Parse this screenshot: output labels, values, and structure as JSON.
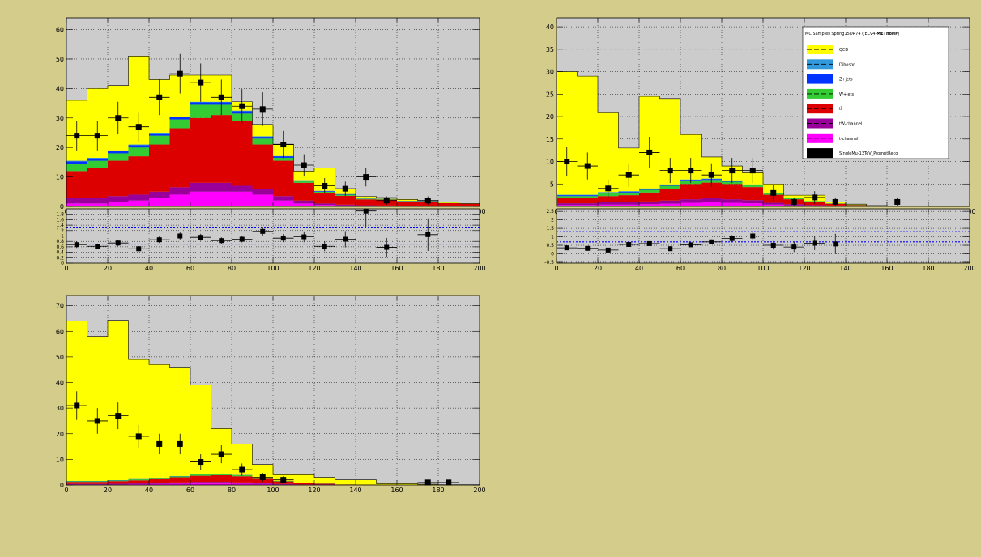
{
  "colors": {
    "canvas_bg": "#d4cc8a",
    "frame_bg": "#cccccc",
    "QCD": "#ffff00",
    "Diboson": "#3399dd",
    "Z+jets": "#0033ff",
    "W+jets": "#33cc33",
    "ttbar": "#dd0000",
    "tW-channel": "#990099",
    "t-channel": "#ff00ff",
    "data": "#000000",
    "ratio_band": "#0000ff"
  },
  "legend": {
    "header_prefix": "MC Samples Spring15DR74 (JECv4-",
    "header_bold": "METnoHF",
    "header_suffix": ")",
    "entries": [
      {
        "key": "QCD",
        "label": "QCD"
      },
      {
        "key": "Diboson",
        "label": "Diboson"
      },
      {
        "key": "Z+jets",
        "label": "Z+jets"
      },
      {
        "key": "W+jets",
        "label": "W+jets"
      },
      {
        "key": "ttbar",
        "label": "tt̄"
      },
      {
        "key": "tW-channel",
        "label": "tW-channel"
      },
      {
        "key": "t-channel",
        "label": "t-channel"
      },
      {
        "key": "data",
        "label": "SingleMu-13TeV_PromptReco"
      }
    ]
  },
  "chart_data": [
    {
      "type": "bar",
      "stacked": true,
      "bin_edges": [
        0,
        10,
        20,
        30,
        40,
        50,
        60,
        70,
        80,
        90,
        100,
        110,
        120,
        130,
        140,
        150,
        160,
        170,
        180,
        190,
        200
      ],
      "xlim": [
        0,
        200
      ],
      "ylim": [
        0,
        64
      ],
      "xticks": [
        0,
        20,
        40,
        60,
        80,
        100,
        120,
        140,
        160,
        180,
        200
      ],
      "yticks": [
        0,
        10,
        20,
        30,
        40,
        50,
        60
      ],
      "stack_order": [
        "t-channel",
        "tW-channel",
        "ttbar",
        "W+jets",
        "Z+jets",
        "Diboson",
        "QCD"
      ],
      "series": [
        {
          "name": "t-channel",
          "values": [
            1,
            1,
            1.5,
            2,
            3,
            4,
            5,
            5,
            5,
            4,
            2,
            1,
            0.5,
            0.3,
            0.2,
            0.1,
            0.1,
            0.1,
            0,
            0
          ]
        },
        {
          "name": "tW-channel",
          "values": [
            2,
            2,
            2,
            2,
            2,
            2.5,
            3,
            3,
            2,
            2,
            1.5,
            1,
            0.5,
            0.3,
            0.2,
            0.2,
            0.1,
            0.1,
            0.1,
            0.1
          ]
        },
        {
          "name": "ttbar",
          "values": [
            9,
            10,
            12,
            13,
            16,
            20,
            22,
            23,
            22,
            15,
            12,
            6,
            3.5,
            3,
            2,
            2,
            1.5,
            1.5,
            1,
            0.8
          ]
        },
        {
          "name": "W+jets",
          "values": [
            2.5,
            2.5,
            2.5,
            3,
            3,
            3,
            4.5,
            3.5,
            2.5,
            2,
            1,
            0.5,
            0.5,
            0.4,
            0.2,
            0.2,
            0.1,
            0.1,
            0.1,
            0
          ]
        },
        {
          "name": "Z+jets",
          "values": [
            0.8,
            0.8,
            0.8,
            0.8,
            0.8,
            0.8,
            0.8,
            0.8,
            0.8,
            0.6,
            0.5,
            0.3,
            0.2,
            0.2,
            0.1,
            0.1,
            0.1,
            0.1,
            0,
            0
          ]
        },
        {
          "name": "Diboson",
          "values": [
            0.2,
            0.2,
            0.2,
            0.2,
            0.2,
            0.2,
            0.2,
            0.2,
            0.2,
            0.2,
            0.1,
            0.1,
            0.1,
            0,
            0,
            0,
            0,
            0,
            0,
            0
          ]
        },
        {
          "name": "QCD",
          "values": [
            20.5,
            23.5,
            22,
            30,
            18,
            14,
            9,
            9,
            3,
            4,
            4,
            3.1,
            7.7,
            1.8,
            0.7,
            0.4,
            0.5,
            0.1,
            0.3,
            0.1
          ]
        }
      ],
      "data_points": {
        "x": [
          5,
          15,
          25,
          35,
          45,
          55,
          65,
          75,
          85,
          95,
          105,
          115,
          125,
          135,
          145,
          155,
          175
        ],
        "y": [
          24,
          24,
          30,
          27,
          37,
          45,
          42,
          37,
          34,
          33,
          21,
          14,
          7,
          6,
          10,
          2,
          2
        ],
        "yerr": [
          5,
          5,
          5.5,
          5,
          6,
          6.7,
          6.5,
          6,
          5.8,
          5.7,
          4.6,
          3.7,
          2.6,
          2.4,
          3.2,
          1.4,
          1.4
        ]
      }
    },
    {
      "type": "scatter",
      "name": "ratio",
      "xlim": [
        0,
        200
      ],
      "ylim": [
        0,
        2
      ],
      "xticks": [
        0,
        20,
        40,
        60,
        80,
        100,
        120,
        140,
        160,
        180,
        200
      ],
      "yticks": [
        0,
        0.2,
        0.4,
        0.6,
        0.8,
        1,
        1.2,
        1.4,
        1.6,
        1.8
      ],
      "ytick_labels": [
        "0",
        "0.2",
        "0.4",
        "0.6",
        "0.8",
        "1",
        "1.2",
        "1.4",
        "1.6",
        "1.8"
      ],
      "band_lines": [
        0.7,
        1.3
      ],
      "x": [
        5,
        15,
        25,
        35,
        45,
        55,
        65,
        75,
        85,
        95,
        105,
        115,
        125,
        135,
        145,
        155,
        175
      ],
      "y": [
        0.68,
        0.62,
        0.74,
        0.53,
        0.86,
        1.0,
        0.95,
        0.83,
        0.88,
        1.17,
        0.92,
        0.97,
        0.62,
        0.88,
        1.92,
        0.58,
        1.05
      ],
      "yerr": [
        0.12,
        0.1,
        0.12,
        0.1,
        0.12,
        0.13,
        0.13,
        0.12,
        0.12,
        0.15,
        0.15,
        0.2,
        0.18,
        0.3,
        0.6,
        0.35,
        0.6
      ]
    },
    {
      "type": "bar",
      "stacked": true,
      "bin_edges": [
        0,
        10,
        20,
        30,
        40,
        50,
        60,
        70,
        80,
        90,
        100,
        110,
        120,
        130,
        140,
        150,
        160,
        170,
        180,
        190,
        200
      ],
      "xlim": [
        0,
        200
      ],
      "ylim": [
        0,
        42
      ],
      "xticks": [
        0,
        20,
        40,
        60,
        80,
        100,
        120,
        140,
        160,
        180,
        200
      ],
      "yticks": [
        5,
        10,
        15,
        20,
        25,
        30,
        35,
        40
      ],
      "stack_order": [
        "t-channel",
        "tW-channel",
        "ttbar",
        "W+jets",
        "Z+jets",
        "Diboson",
        "QCD"
      ],
      "series": [
        {
          "name": "t-channel",
          "values": [
            0.3,
            0.3,
            0.4,
            0.4,
            0.5,
            0.6,
            0.8,
            0.9,
            0.8,
            0.7,
            0.4,
            0.2,
            0.1,
            0.1,
            0,
            0,
            0,
            0,
            0,
            0
          ]
        },
        {
          "name": "tW-channel",
          "values": [
            0.4,
            0.4,
            0.5,
            0.5,
            0.6,
            0.7,
            0.8,
            0.9,
            0.8,
            0.7,
            0.4,
            0.3,
            0.2,
            0.1,
            0.1,
            0,
            0,
            0,
            0,
            0
          ]
        },
        {
          "name": "ttbar",
          "values": [
            1.1,
            1.1,
            1.4,
            1.6,
            2.0,
            2.6,
            3.4,
            3.5,
            3.4,
            2.9,
            1.8,
            1.1,
            0.7,
            0.4,
            0.2,
            0.1,
            0.1,
            0.1,
            0,
            0
          ]
        },
        {
          "name": "W+jets",
          "values": [
            0.5,
            0.5,
            0.6,
            0.6,
            0.6,
            0.7,
            0.7,
            0.6,
            0.5,
            0.4,
            0.3,
            0.2,
            0.2,
            0.1,
            0.1,
            0,
            0,
            0,
            0,
            0
          ]
        },
        {
          "name": "Z+jets",
          "values": [
            0.2,
            0.2,
            0.2,
            0.2,
            0.2,
            0.2,
            0.2,
            0.2,
            0.2,
            0.1,
            0.1,
            0.1,
            0,
            0,
            0,
            0,
            0,
            0,
            0,
            0
          ]
        },
        {
          "name": "Diboson",
          "values": [
            0.1,
            0.1,
            0.1,
            0.1,
            0.1,
            0.1,
            0.1,
            0.1,
            0.1,
            0.1,
            0,
            0,
            0,
            0,
            0,
            0,
            0,
            0,
            0,
            0
          ]
        },
        {
          "name": "QCD",
          "values": [
            27.4,
            26.4,
            17.8,
            9.6,
            20.5,
            19.1,
            10.0,
            4.8,
            3.2,
            2.6,
            2.0,
            0.6,
            1.3,
            0.3,
            0.1,
            0.1,
            0,
            0,
            0,
            0
          ]
        }
      ],
      "data_points": {
        "x": [
          5,
          15,
          25,
          35,
          45,
          55,
          65,
          75,
          85,
          95,
          105,
          115,
          125,
          135,
          165
        ],
        "y": [
          10,
          9,
          4,
          7,
          12,
          8,
          8,
          7,
          8,
          8,
          3,
          1,
          2,
          1,
          1
        ],
        "yerr": [
          3.2,
          3,
          2,
          2.6,
          3.5,
          2.8,
          2.8,
          2.6,
          2.8,
          2.8,
          1.7,
          1,
          1.4,
          1,
          1
        ]
      }
    },
    {
      "type": "scatter",
      "name": "ratio",
      "xlim": [
        0,
        200
      ],
      "ylim": [
        -0.55,
        2.65
      ],
      "xticks": [
        0,
        20,
        40,
        60,
        80,
        100,
        120,
        140,
        160,
        180,
        200
      ],
      "yticks": [
        -0.5,
        0,
        0.5,
        1,
        1.5,
        2,
        2.5
      ],
      "ytick_labels": [
        "-0.5",
        "0",
        "0.5",
        "1",
        "1.5",
        "2",
        "2.5"
      ],
      "band_lines": [
        0.7,
        1.3
      ],
      "x": [
        5,
        15,
        25,
        35,
        45,
        55,
        65,
        75,
        85,
        95,
        105,
        115,
        125,
        135
      ],
      "y": [
        0.35,
        0.32,
        0.22,
        0.55,
        0.6,
        0.3,
        0.53,
        0.7,
        0.9,
        1.05,
        0.5,
        0.4,
        0.62,
        0.58
      ],
      "yerr": [
        0.1,
        0.1,
        0.1,
        0.12,
        0.12,
        0.1,
        0.1,
        0.15,
        0.2,
        0.25,
        0.25,
        0.3,
        0.4,
        0.6
      ]
    },
    {
      "type": "bar",
      "stacked": true,
      "bin_edges": [
        0,
        10,
        20,
        30,
        40,
        50,
        60,
        70,
        80,
        90,
        100,
        110,
        120,
        130,
        140,
        150,
        160,
        170,
        180,
        190,
        200
      ],
      "xlim": [
        0,
        200
      ],
      "ylim": [
        0,
        74
      ],
      "xticks": [
        0,
        20,
        40,
        60,
        80,
        100,
        120,
        140,
        160,
        180,
        200
      ],
      "yticks": [
        0,
        10,
        20,
        30,
        40,
        50,
        60,
        70
      ],
      "stack_order": [
        "t-channel",
        "tW-channel",
        "ttbar",
        "W+jets",
        "Z+jets",
        "Diboson",
        "QCD"
      ],
      "series": [
        {
          "name": "t-channel",
          "values": [
            0.2,
            0.2,
            0.2,
            0.3,
            0.4,
            0.5,
            0.6,
            0.6,
            0.5,
            0.4,
            0.2,
            0.1,
            0.1,
            0,
            0,
            0,
            0,
            0,
            0,
            0
          ]
        },
        {
          "name": "tW-channel",
          "values": [
            0.2,
            0.2,
            0.3,
            0.3,
            0.4,
            0.5,
            0.6,
            0.6,
            0.5,
            0.4,
            0.2,
            0.1,
            0.1,
            0,
            0,
            0,
            0,
            0,
            0,
            0
          ]
        },
        {
          "name": "ttbar",
          "values": [
            0.8,
            0.8,
            1,
            1.2,
            1.5,
            2,
            2.4,
            2.6,
            2.4,
            1.6,
            1,
            0.6,
            0.3,
            0.2,
            0.1,
            0.1,
            0,
            0,
            0,
            0
          ]
        },
        {
          "name": "W+jets",
          "values": [
            0.3,
            0.3,
            0.3,
            0.4,
            0.4,
            0.4,
            0.5,
            0.5,
            0.4,
            0.3,
            0.2,
            0.1,
            0.1,
            0,
            0,
            0,
            0,
            0,
            0,
            0
          ]
        },
        {
          "name": "Z+jets",
          "values": [
            0.1,
            0.1,
            0.1,
            0.1,
            0.1,
            0.1,
            0.1,
            0.1,
            0.1,
            0.1,
            0,
            0,
            0,
            0,
            0,
            0,
            0,
            0,
            0,
            0
          ]
        },
        {
          "name": "Diboson",
          "values": [
            0,
            0,
            0,
            0,
            0,
            0,
            0,
            0,
            0,
            0,
            0,
            0,
            0,
            0,
            0,
            0,
            0,
            0,
            0,
            0
          ]
        },
        {
          "name": "QCD",
          "values": [
            62.4,
            56.4,
            62.4,
            46.7,
            44.2,
            42.5,
            34.8,
            17.6,
            12.1,
            5.2,
            2.4,
            3.1,
            2.4,
            1.8,
            1.9,
            0.4,
            0.5,
            0.3,
            0.1,
            0.1
          ]
        }
      ],
      "data_points": {
        "x": [
          5,
          15,
          25,
          35,
          45,
          55,
          65,
          75,
          85,
          95,
          105,
          175,
          185
        ],
        "y": [
          31,
          25,
          27,
          19,
          16,
          16,
          9,
          12,
          6,
          3,
          2,
          1,
          1
        ],
        "yerr": [
          5.6,
          5,
          5.2,
          4.4,
          4,
          4,
          3,
          3.5,
          2.4,
          1.7,
          1.4,
          1,
          1
        ]
      }
    }
  ]
}
